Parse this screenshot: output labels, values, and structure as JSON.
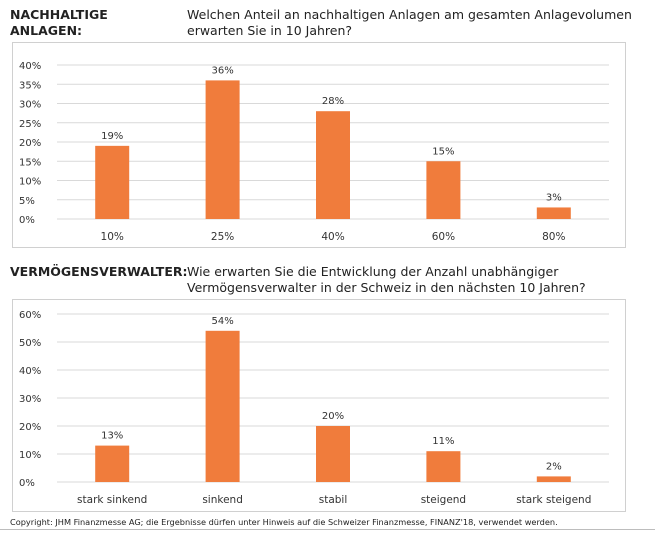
{
  "section1": {
    "label_line1": "NACHHALTIGE",
    "label_line2": "ANLAGEN:",
    "question_line1": "Welchen Anteil an nachhaltigen Anlagen am gesamten Anlagevolumen",
    "question_line2": "erwarten Sie in 10 Jahren?"
  },
  "section2": {
    "label": "VERMÖGENSVERWALTER:",
    "question_line1": "Wie erwarten Sie die Entwicklung der Anzahl unabhängiger",
    "question_line2": "Vermögensverwalter in der Schweiz in den nächsten 10 Jahren?"
  },
  "copyright": "Copyright: JHM Finanzmesse AG; die Ergebnisse dürfen unter Hinweis auf die Schweizer Finanzmesse, FINANZ'18, verwendet werden.",
  "bar_color": "#f07c3c",
  "chart_data": [
    {
      "type": "bar",
      "title": "Welchen Anteil an nachhaltigen Anlagen am gesamten Anlagevolumen erwarten Sie in 10 Jahren?",
      "categories": [
        "10%",
        "25%",
        "40%",
        "60%",
        "80%"
      ],
      "values": [
        19,
        36,
        28,
        15,
        3
      ],
      "data_labels": [
        "19%",
        "36%",
        "28%",
        "15%",
        "3%"
      ],
      "yticks": [
        "0%",
        "5%",
        "10%",
        "15%",
        "20%",
        "25%",
        "30%",
        "35%",
        "40%"
      ],
      "ytick_values": [
        0,
        5,
        10,
        15,
        20,
        25,
        30,
        35,
        40
      ],
      "ylim": [
        0,
        40
      ],
      "grid": true,
      "xlabel": "",
      "ylabel": ""
    },
    {
      "type": "bar",
      "title": "Wie erwarten Sie die Entwicklung der Anzahl unabhängiger Vermögensverwalter in der Schweiz in den nächsten 10 Jahren?",
      "categories": [
        "stark sinkend",
        "sinkend",
        "stabil",
        "steigend",
        "stark steigend"
      ],
      "values": [
        13,
        54,
        20,
        11,
        2
      ],
      "data_labels": [
        "13%",
        "54%",
        "20%",
        "11%",
        "2%"
      ],
      "yticks": [
        "0%",
        "10%",
        "20%",
        "30%",
        "40%",
        "50%",
        "60%"
      ],
      "ytick_values": [
        0,
        10,
        20,
        30,
        40,
        50,
        60
      ],
      "ylim": [
        0,
        60
      ],
      "grid": true,
      "xlabel": "",
      "ylabel": ""
    }
  ]
}
